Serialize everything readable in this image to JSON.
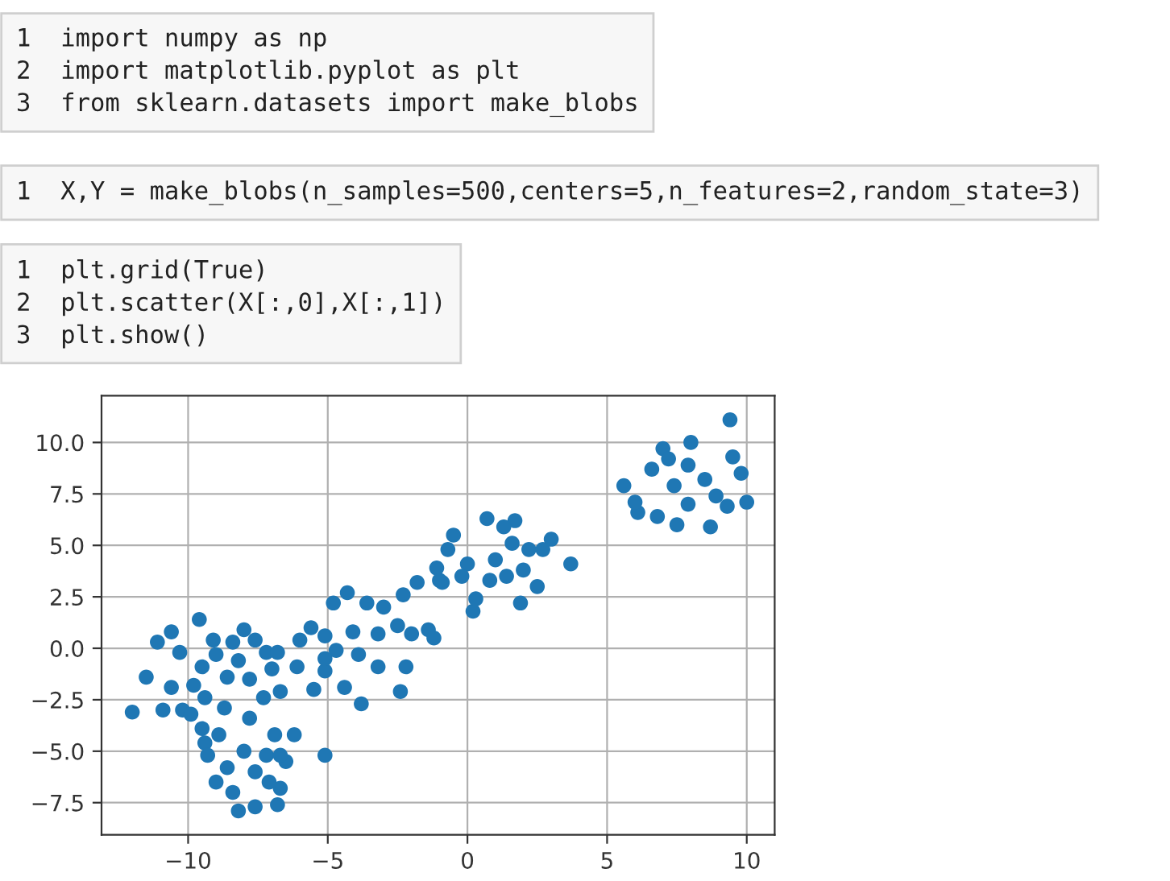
{
  "chart_data": {
    "type": "scatter",
    "annotations": [
      "1  import numpy as np\n2  import matplotlib.pyplot as plt\n3  from sklearn.datasets import make_blobs",
      "1  X,Y = make_blobs(n_samples=500,centers=5,n_features=2,random_state=3)",
      "1  plt.grid(True)\n2  plt.scatter(X[:,0],X[:,1])\n3  plt.show()"
    ],
    "x": [
      -12.0,
      -11.1,
      -11.5,
      -10.6,
      -10.6,
      -10.9,
      -10.2,
      -9.9,
      -9.6,
      -10.3,
      -9.5,
      -9.0,
      -8.6,
      -8.0,
      -8.2,
      -7.6,
      -7.2,
      -6.8,
      -7.0,
      -7.3,
      -8.7,
      -9.4,
      -9.8,
      -9.1,
      -8.4,
      -7.8,
      -6.7,
      -9.5,
      -9.4,
      -9.3,
      -9.0,
      -8.2,
      -7.6,
      -6.8,
      -6.7,
      -6.5,
      -6.2,
      -6.9,
      -7.8,
      -8.0,
      -8.6,
      -7.6,
      -7.2,
      -8.4,
      -7.1,
      -8.9,
      -5.1,
      -6.7,
      -5.6,
      -6.0,
      -6.1,
      -5.5,
      -5.1,
      -4.8,
      -4.3,
      -3.8,
      -3.9,
      -4.4,
      -3.6,
      -3.0,
      -2.4,
      -2.2,
      -2.0,
      -2.5,
      -3.2,
      -3.2,
      -4.7,
      -5.1,
      -4.1,
      -1.4,
      -1.2,
      -2.3,
      -1.8,
      -1.1,
      -0.9,
      -5.1,
      -0.5,
      0.7,
      1.7,
      3.0,
      3.7,
      2.5,
      1.9,
      0.2,
      0.3,
      -1.0,
      -0.7,
      0.0,
      1.0,
      1.6,
      2.2,
      0.8,
      1.4,
      2.0,
      -0.2,
      2.7,
      1.3,
      5.6,
      6.1,
      9.4,
      8.0,
      7.0,
      10.0,
      9.8,
      9.5,
      8.7,
      7.5,
      6.8,
      6.0,
      7.4,
      8.5,
      8.9,
      6.6,
      7.9,
      9.3,
      7.9,
      7.2
    ],
    "values": [
      -3.1,
      0.3,
      -1.4,
      0.8,
      -1.9,
      -3.0,
      -3.0,
      -3.2,
      1.4,
      -0.2,
      -0.9,
      -0.3,
      -1.4,
      0.9,
      -0.6,
      0.4,
      -0.2,
      -0.2,
      -1.0,
      -2.4,
      -2.9,
      -2.4,
      -1.8,
      0.4,
      0.3,
      -1.5,
      -2.1,
      -3.9,
      -4.6,
      -5.2,
      -6.5,
      -7.9,
      -7.7,
      -7.6,
      -6.8,
      -5.5,
      -4.2,
      -4.2,
      -3.4,
      -5.0,
      -5.8,
      -6.0,
      -5.2,
      -7.0,
      -6.5,
      -4.2,
      -5.2,
      -5.2,
      1.0,
      0.4,
      -0.9,
      -2.0,
      0.6,
      2.2,
      2.7,
      -2.7,
      -0.3,
      -1.9,
      2.2,
      2.0,
      -2.1,
      -0.9,
      0.7,
      1.1,
      0.7,
      -0.9,
      -0.1,
      -1.1,
      0.8,
      0.9,
      0.5,
      2.6,
      3.2,
      3.9,
      3.2,
      -0.5,
      5.5,
      6.3,
      6.2,
      5.3,
      4.1,
      3.0,
      2.2,
      1.8,
      2.4,
      3.3,
      4.8,
      4.1,
      4.3,
      5.1,
      4.8,
      3.3,
      3.5,
      3.8,
      3.5,
      4.8,
      5.9,
      7.9,
      6.6,
      11.1,
      10.0,
      9.7,
      7.1,
      8.5,
      9.3,
      5.9,
      6.0,
      6.4,
      7.1,
      7.9,
      8.2,
      7.4,
      8.7,
      8.9,
      6.9,
      7.0,
      9.2
    ],
    "color": "#1f77b4",
    "marker": "circle",
    "grid": true,
    "xlim": [
      -13.1,
      11.0
    ],
    "ylim": [
      -9.06,
      12.27
    ],
    "xticks": [
      {
        "value": -10,
        "label": "−10"
      },
      {
        "value": -5,
        "label": "−5"
      },
      {
        "value": 0,
        "label": "0"
      },
      {
        "value": 5,
        "label": "5"
      },
      {
        "value": 10,
        "label": "10"
      }
    ],
    "yticks": [
      {
        "value": -7.5,
        "label": "−7.5"
      },
      {
        "value": -5,
        "label": "−5.0"
      },
      {
        "value": -2.5,
        "label": "−2.5"
      },
      {
        "value": 0,
        "label": "0.0"
      },
      {
        "value": 2.5,
        "label": "2.5"
      },
      {
        "value": 5,
        "label": "5.0"
      },
      {
        "value": 7.5,
        "label": "7.5"
      },
      {
        "value": 10,
        "label": "10.0"
      }
    ]
  }
}
